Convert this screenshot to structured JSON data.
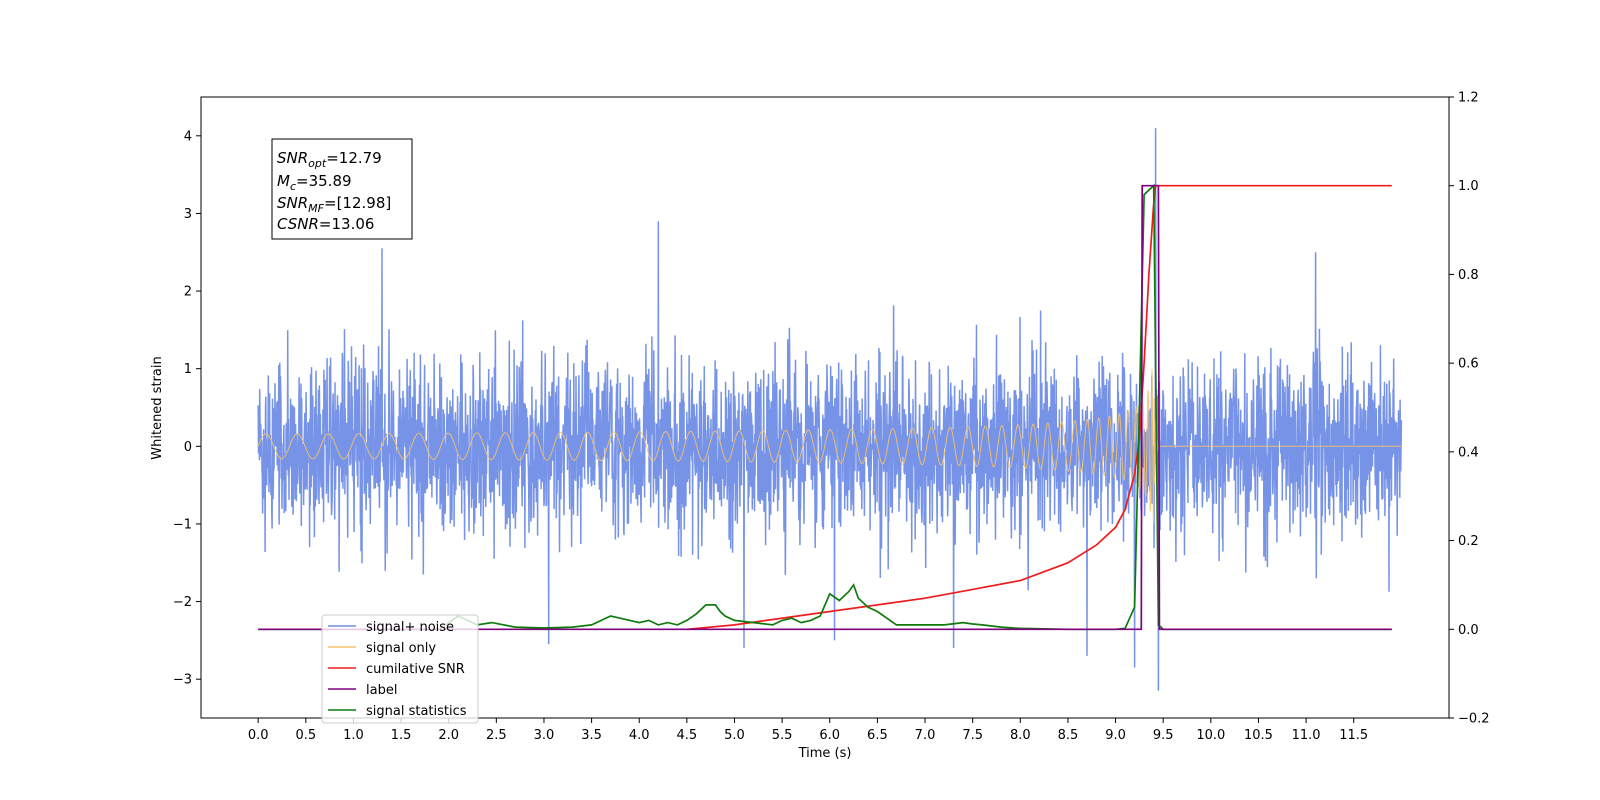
{
  "chart_data": {
    "type": "line",
    "xlabel": "Time (s)",
    "ylabel_left": "Whitened strain",
    "xlim": [
      -0.6,
      12.5
    ],
    "ylim_left": [
      -3.5,
      4.5
    ],
    "ylim_right": [
      -0.2,
      1.2
    ],
    "x_ticks": [
      "0.0",
      "0.5",
      "1.0",
      "1.5",
      "2.0",
      "2.5",
      "3.0",
      "3.5",
      "4.0",
      "4.5",
      "5.0",
      "5.5",
      "6.0",
      "6.5",
      "7.0",
      "7.5",
      "8.0",
      "8.5",
      "9.0",
      "9.5",
      "10.0",
      "10.5",
      "11.0",
      "11.5"
    ],
    "y_ticks_left": [
      "−3",
      "−2",
      "−1",
      "0",
      "1",
      "2",
      "3",
      "4"
    ],
    "y_ticks_right": [
      "−0.2",
      "0.0",
      "0.2",
      "0.4",
      "0.6",
      "0.8",
      "1.0",
      "1.2"
    ],
    "grid": false,
    "legend_position": "lower-left",
    "annotations": {
      "snr_opt": {
        "sym": "SNR",
        "sub": "opt",
        "value": "=12.79"
      },
      "mc": {
        "sym": "M",
        "sub": "c",
        "value": "=35.89"
      },
      "snr_mf": {
        "sym": "SNR",
        "sub": "MF",
        "value": "=[12.98]"
      },
      "csnr": {
        "sym": "CSNR",
        "sub": "",
        "value": "=13.06"
      }
    },
    "series": [
      {
        "name": "signal+ noise",
        "color": "#6f8de6",
        "axis": "left",
        "duration": 12.0,
        "noise_std": 0.55,
        "spikes": [
          [
            9.42,
            4.1
          ],
          [
            9.45,
            -3.15
          ],
          [
            9.2,
            -2.85
          ],
          [
            8.7,
            -2.7
          ],
          [
            4.2,
            2.9
          ],
          [
            1.3,
            2.55
          ],
          [
            11.1,
            2.5
          ],
          [
            6.05,
            -2.5
          ],
          [
            5.1,
            -2.6
          ],
          [
            7.3,
            -2.6
          ],
          [
            3.05,
            -2.55
          ]
        ]
      },
      {
        "name": "signal only",
        "color": "#f5c26b",
        "axis": "left",
        "merger_time": 9.4,
        "start_freq": 3.0,
        "peak_amp": 1.0
      },
      {
        "name": "cumilative SNR",
        "color": "#ee1c1c",
        "axis": "right",
        "x": [
          4.5,
          5.0,
          6.0,
          7.0,
          7.5,
          8.0,
          8.5,
          8.8,
          9.0,
          9.1,
          9.2,
          9.25,
          9.3,
          9.35,
          9.4,
          9.42,
          9.45,
          10.0,
          11.0,
          11.9
        ],
        "y": [
          0.0,
          0.01,
          0.04,
          0.07,
          0.09,
          0.11,
          0.15,
          0.19,
          0.23,
          0.27,
          0.35,
          0.43,
          0.6,
          0.8,
          0.96,
          1.0,
          1.0,
          1.0,
          1.0,
          1.0
        ]
      },
      {
        "name": "label",
        "color": "#800080",
        "axis": "right",
        "x": [
          0.0,
          9.27,
          9.28,
          9.45,
          9.46,
          11.9
        ],
        "y": [
          0.0,
          0.0,
          1.0,
          1.0,
          0.0,
          0.0
        ]
      },
      {
        "name": "signal statistics",
        "color": "#0f7b0f",
        "axis": "right",
        "x": [
          0.0,
          1.9,
          2.1,
          2.2,
          2.3,
          2.45,
          2.7,
          3.0,
          3.3,
          3.5,
          3.7,
          3.8,
          4.0,
          4.1,
          4.2,
          4.3,
          4.4,
          4.5,
          4.6,
          4.7,
          4.8,
          4.85,
          4.9,
          5.0,
          5.2,
          5.4,
          5.5,
          5.6,
          5.7,
          5.8,
          5.9,
          6.0,
          6.1,
          6.2,
          6.25,
          6.3,
          6.4,
          6.5,
          6.6,
          6.7,
          6.8,
          7.0,
          7.2,
          7.4,
          7.5,
          7.6,
          7.8,
          8.0,
          8.5,
          9.0,
          9.1,
          9.2,
          9.25,
          9.3,
          9.35,
          9.4,
          9.45,
          9.5,
          10.0,
          11.9
        ],
        "y": [
          0.0,
          0.0,
          0.03,
          0.02,
          0.01,
          0.015,
          0.005,
          0.003,
          0.005,
          0.01,
          0.03,
          0.025,
          0.015,
          0.02,
          0.01,
          0.015,
          0.01,
          0.02,
          0.035,
          0.055,
          0.055,
          0.04,
          0.03,
          0.02,
          0.015,
          0.01,
          0.02,
          0.025,
          0.015,
          0.02,
          0.03,
          0.08,
          0.065,
          0.085,
          0.1,
          0.07,
          0.05,
          0.04,
          0.025,
          0.01,
          0.01,
          0.01,
          0.01,
          0.015,
          0.012,
          0.01,
          0.005,
          0.002,
          0.0,
          0.0,
          0.002,
          0.05,
          0.5,
          0.98,
          0.99,
          1.0,
          0.01,
          0.0,
          0.0,
          0.0
        ]
      }
    ]
  }
}
